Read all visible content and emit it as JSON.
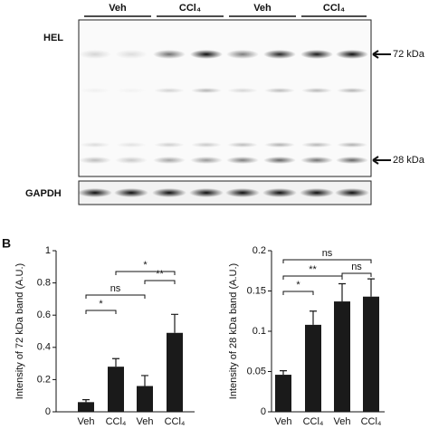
{
  "blot": {
    "groups": [
      "Veh",
      "CCl₄",
      "Veh",
      "CCl₄"
    ],
    "protein": "HEL",
    "control": "GAPDH",
    "markers": [
      "72 kDa",
      "28 kDa"
    ]
  },
  "panel_label": "B",
  "chart_data": [
    {
      "type": "bar",
      "ylabel": "Intensity of 72 kDa band (A.U.)",
      "categories": [
        "Veh",
        "CCl₄",
        "Veh",
        "CCl₄"
      ],
      "values": [
        0.06,
        0.28,
        0.16,
        0.49
      ],
      "errors": [
        0.015,
        0.05,
        0.065,
        0.115
      ],
      "color": "#1a1a1a",
      "ylim": [
        0,
        1
      ],
      "yticks": [
        0,
        0.2,
        0.4,
        0.6,
        0.8,
        1
      ],
      "annotations": [
        "*",
        "ns",
        "*",
        "**"
      ]
    },
    {
      "type": "bar",
      "ylabel": "Intensity of 28 kDa band (A.U.)",
      "categories": [
        "Veh",
        "CCl₄",
        "Veh",
        "CCl₄"
      ],
      "values": [
        0.046,
        0.108,
        0.137,
        0.143
      ],
      "errors": [
        0.005,
        0.017,
        0.022,
        0.022
      ],
      "color": "#1a1a1a",
      "ylim": [
        0,
        0.2
      ],
      "yticks": [
        0,
        0.05,
        0.1,
        0.15,
        0.2
      ],
      "annotations": [
        "*",
        "**",
        "ns",
        "ns"
      ]
    }
  ]
}
